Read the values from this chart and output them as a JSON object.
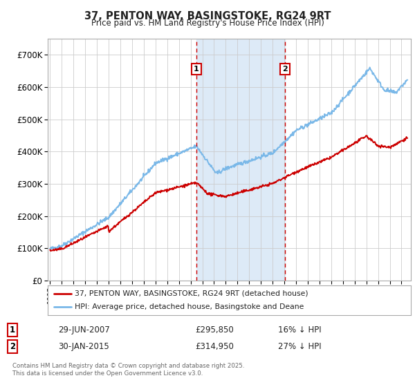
{
  "title": "37, PENTON WAY, BASINGSTOKE, RG24 9RT",
  "subtitle": "Price paid vs. HM Land Registry's House Price Index (HPI)",
  "hpi_color": "#7ab8e8",
  "price_color": "#cc0000",
  "background_color": "#ffffff",
  "grid_color": "#cccccc",
  "sale1_date_num": 2007.49,
  "sale2_date_num": 2015.08,
  "ylim_min": 0,
  "ylim_max": 750000,
  "xlim_min": 1994.8,
  "xlim_max": 2025.8,
  "legend_line1": "37, PENTON WAY, BASINGSTOKE, RG24 9RT (detached house)",
  "legend_line2": "HPI: Average price, detached house, Basingstoke and Deane",
  "table_row1": [
    "1",
    "29-JUN-2007",
    "£295,850",
    "16% ↓ HPI"
  ],
  "table_row2": [
    "2",
    "30-JAN-2015",
    "£314,950",
    "27% ↓ HPI"
  ],
  "footnote": "Contains HM Land Registry data © Crown copyright and database right 2025.\nThis data is licensed under the Open Government Licence v3.0.",
  "shade_color": "#ddeaf7"
}
